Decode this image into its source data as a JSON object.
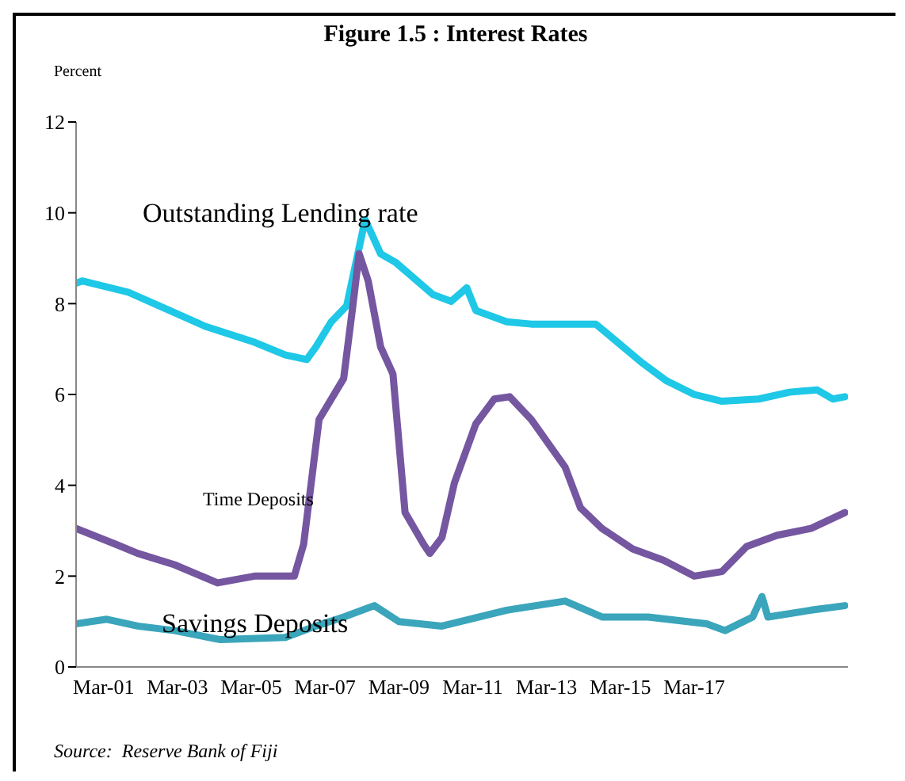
{
  "chart_data": {
    "type": "line",
    "title": "Figure 1.5 : Interest Rates",
    "ylabel": "Percent",
    "annotations": [
      "Source:  Reserve Bank of Fiji"
    ],
    "xlim": [
      "2000-06",
      "2021-05"
    ],
    "xticks": [
      {
        "value": "2001-03",
        "label": "Mar-01"
      },
      {
        "value": "2003-03",
        "label": "Mar-03"
      },
      {
        "value": "2005-03",
        "label": "Mar-05"
      },
      {
        "value": "2007-03",
        "label": "Mar-07"
      },
      {
        "value": "2009-03",
        "label": "Mar-09"
      },
      {
        "value": "2011-03",
        "label": "Mar-11"
      },
      {
        "value": "2013-03",
        "label": "Mar-13"
      },
      {
        "value": "2015-03",
        "label": "Mar-15"
      },
      {
        "value": "2017-03",
        "label": "Mar-17"
      }
    ],
    "ylim": [
      0,
      12
    ],
    "yticks": [
      0,
      2,
      4,
      6,
      8,
      10,
      12
    ],
    "marker": "none",
    "line_style": "solid",
    "series": [
      {
        "name": "Outstanding Lending rate",
        "color": "#1ec8e6",
        "x": [
          "2000-06",
          "2000-08",
          "2001-11",
          "2002-09",
          "2003-12",
          "2005-04",
          "2006-02",
          "2006-09",
          "2006-12",
          "2007-05",
          "2007-10",
          "2008-04",
          "2008-09",
          "2009-02",
          "2010-02",
          "2010-08",
          "2011-01",
          "2011-04",
          "2012-02",
          "2012-10",
          "2014-07",
          "2015-02",
          "2015-10",
          "2016-06",
          "2017-03",
          "2017-12",
          "2018-12",
          "2019-10",
          "2020-07",
          "2020-12",
          "2021-04"
        ],
        "values": [
          8.45,
          8.5,
          8.25,
          7.95,
          7.5,
          7.15,
          6.87,
          6.77,
          7.05,
          7.6,
          7.95,
          9.85,
          9.1,
          8.9,
          8.2,
          8.05,
          8.35,
          7.85,
          7.6,
          7.55,
          7.55,
          7.15,
          6.7,
          6.3,
          6.0,
          5.85,
          5.9,
          6.05,
          6.1,
          5.9,
          5.95
        ]
      },
      {
        "name": "Time Deposits",
        "color": "#7556a0",
        "x": [
          "2000-06",
          "2001-07",
          "2002-02",
          "2003-02",
          "2004-04",
          "2005-04",
          "2006-05",
          "2006-08",
          "2007-01",
          "2007-09",
          "2007-12",
          "2008-02",
          "2008-05",
          "2008-09",
          "2009-01",
          "2009-05",
          "2009-11",
          "2010-01",
          "2010-05",
          "2010-09",
          "2011-04",
          "2011-10",
          "2012-03",
          "2012-10",
          "2013-09",
          "2014-02",
          "2014-09",
          "2015-07",
          "2016-05",
          "2017-03",
          "2017-12",
          "2018-08",
          "2019-06",
          "2020-05",
          "2021-04"
        ],
        "values": [
          3.05,
          2.7,
          2.5,
          2.25,
          1.85,
          2.0,
          2.0,
          2.7,
          5.45,
          6.35,
          7.95,
          9.1,
          8.5,
          7.05,
          6.45,
          3.4,
          2.7,
          2.5,
          2.85,
          4.05,
          5.35,
          5.9,
          5.95,
          5.45,
          4.4,
          3.5,
          3.05,
          2.6,
          2.35,
          2.0,
          2.1,
          2.65,
          2.9,
          3.05,
          3.4
        ]
      },
      {
        "name": "Savings Deposits",
        "color": "#3aa5bb",
        "x": [
          "2000-06",
          "2001-04",
          "2002-02",
          "2003-02",
          "2004-05",
          "2006-02",
          "2006-12",
          "2007-09",
          "2008-07",
          "2009-03",
          "2010-05",
          "2012-02",
          "2013-09",
          "2014-09",
          "2015-12",
          "2017-07",
          "2018-01",
          "2018-10",
          "2019-01",
          "2019-03",
          "2020-05",
          "2021-04"
        ],
        "values": [
          0.95,
          1.05,
          0.9,
          0.8,
          0.6,
          0.65,
          0.9,
          1.1,
          1.35,
          1.0,
          0.9,
          1.25,
          1.45,
          1.1,
          1.1,
          0.95,
          0.8,
          1.1,
          1.55,
          1.1,
          1.25,
          1.35
        ]
      }
    ]
  }
}
